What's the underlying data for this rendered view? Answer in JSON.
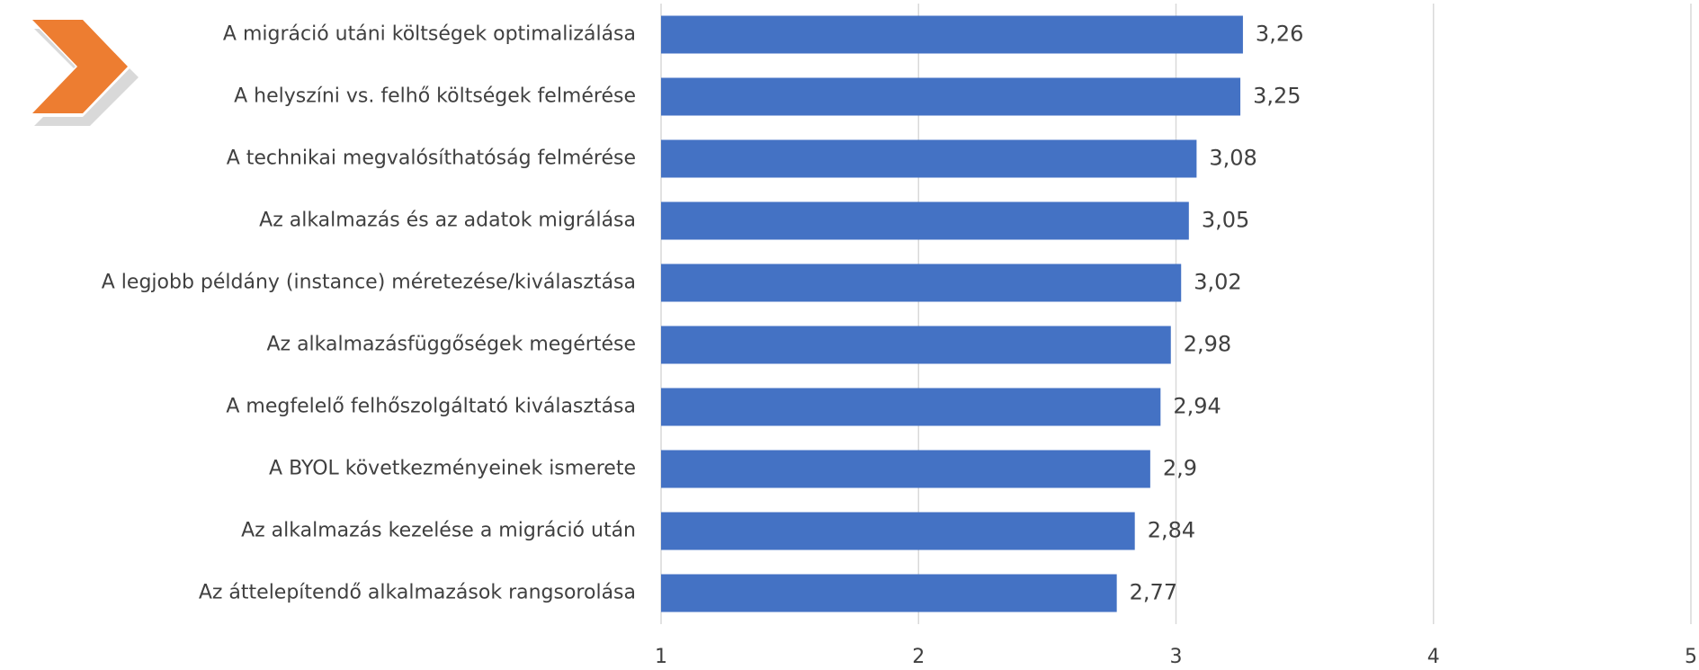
{
  "chart_data": {
    "type": "bar",
    "orientation": "horizontal",
    "categories": [
      "A migráció utáni költségek optimalizálása",
      "A helyszíni vs. felhő költségek felmérése",
      "A technikai megvalósíthatóság felmérése",
      "Az alkalmazás és az adatok migrálása",
      "A legjobb példány (instance) méretezése/kiválasztása",
      "Az alkalmazásfüggőségek megértése",
      "A megfelelő felhőszolgáltató kiválasztása",
      "A BYOL következményeinek ismerete",
      "Az alkalmazás kezelése a migráció után",
      "Az áttelepítendő alkalmazások rangsorolása"
    ],
    "values": [
      3.26,
      3.25,
      3.08,
      3.05,
      3.02,
      2.98,
      2.94,
      2.9,
      2.84,
      2.77
    ],
    "value_labels": [
      "3,26",
      "3,25",
      "3,08",
      "3,05",
      "3,02",
      "2,98",
      "2,94",
      "2,9",
      "2,84",
      "2,77"
    ],
    "color": "#4472c4",
    "xlim": [
      1,
      5
    ],
    "xticks": [
      1,
      2,
      3,
      4,
      5
    ],
    "grid": true
  }
}
